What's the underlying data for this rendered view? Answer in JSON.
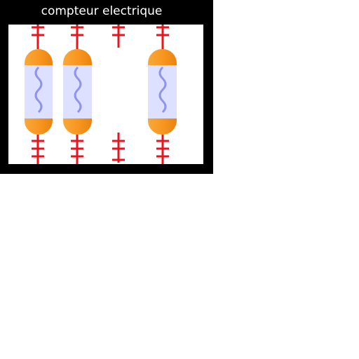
{
  "title": "compteur electrique",
  "colors": {
    "frame": "#000000",
    "wire": "#e8141e",
    "fuse_cap": "#f7951e",
    "fuse_body": "#dde0ff",
    "fuse_filament": "#8f95e8"
  },
  "fuse_slots": [
    {
      "name": "slot-1",
      "fuse_present": true
    },
    {
      "name": "slot-2",
      "fuse_present": true
    },
    {
      "name": "slot-3",
      "fuse_present": false
    },
    {
      "name": "slot-4",
      "fuse_present": true
    }
  ]
}
